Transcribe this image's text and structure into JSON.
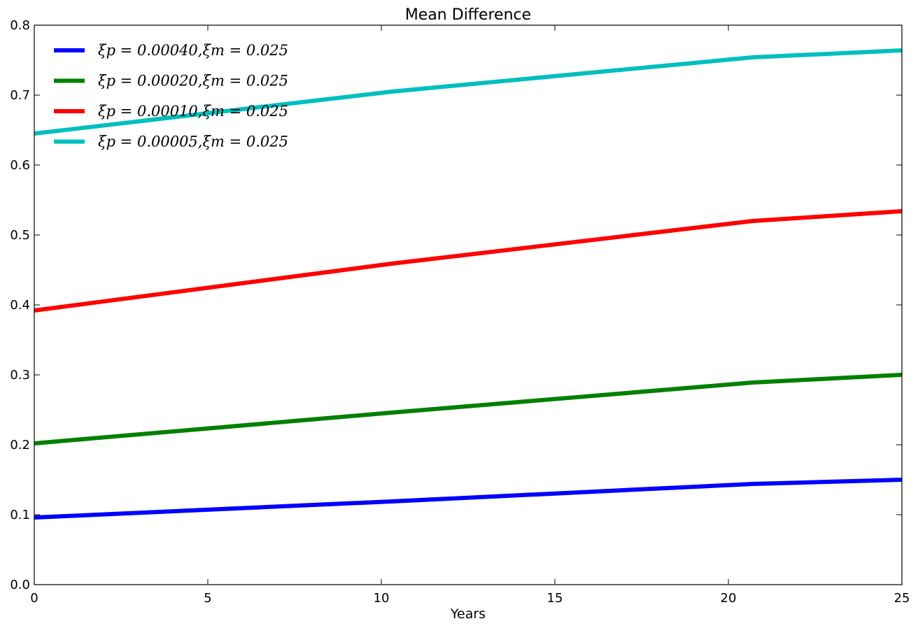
{
  "chart_data": {
    "type": "line",
    "title": "Mean Difference",
    "xlabel": "Years",
    "ylabel": "",
    "xlim": [
      0,
      25
    ],
    "ylim": [
      0.0,
      0.8
    ],
    "xticks": [
      0,
      5,
      10,
      15,
      20,
      25
    ],
    "xtick_labels": [
      "0",
      "5",
      "10",
      "15",
      "20",
      "25"
    ],
    "yticks": [
      0.0,
      0.1,
      0.2,
      0.3,
      0.4,
      0.5,
      0.6,
      0.7,
      0.8
    ],
    "ytick_labels": [
      "0.0",
      "0.1",
      "0.2",
      "0.3",
      "0.4",
      "0.5",
      "0.6",
      "0.7",
      "0.8"
    ],
    "grid": false,
    "legend_position": "top-left",
    "x": [
      0,
      10.3,
      20.7,
      25
    ],
    "series": [
      {
        "name": "ξp = 0.00040,ξm = 0.025",
        "color": "#0000ff",
        "values": [
          0.096,
          0.119,
          0.144,
          0.15
        ]
      },
      {
        "name": "ξp = 0.00020,ξm = 0.025",
        "color": "#008000",
        "values": [
          0.202,
          0.246,
          0.289,
          0.3
        ]
      },
      {
        "name": "ξp = 0.00010,ξm = 0.025",
        "color": "#ff0000",
        "values": [
          0.392,
          0.459,
          0.52,
          0.534
        ]
      },
      {
        "name": "ξp = 0.00005,ξm = 0.025",
        "color": "#00bfbf",
        "values": [
          0.645,
          0.705,
          0.754,
          0.764
        ]
      }
    ]
  }
}
